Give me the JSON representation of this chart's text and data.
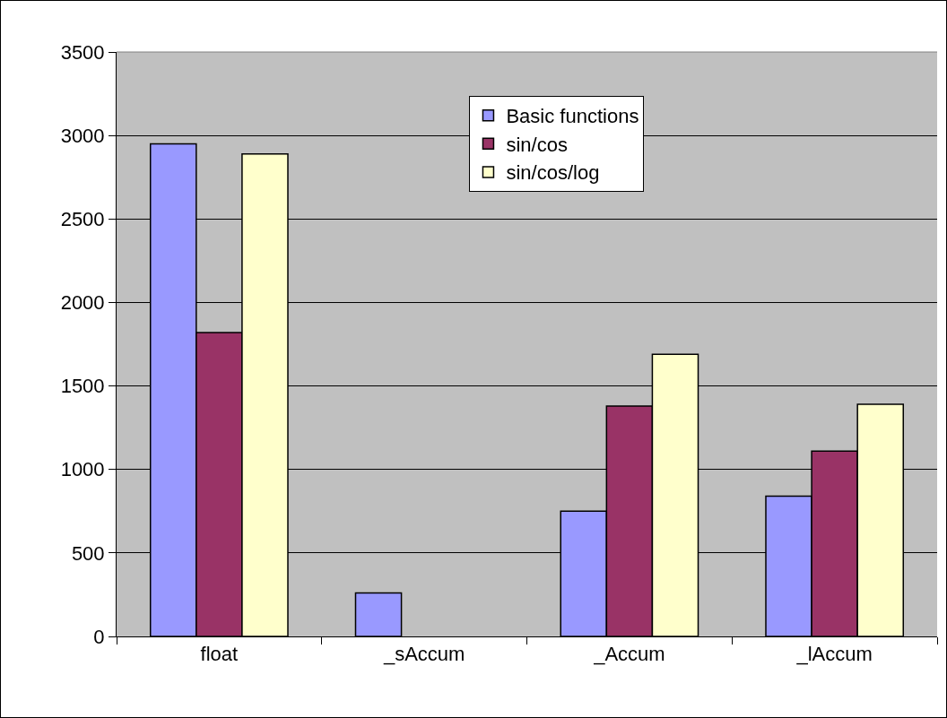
{
  "chart_data": {
    "type": "bar",
    "categories": [
      "float",
      "_sAccum",
      "_Accum",
      "_lAccum"
    ],
    "series": [
      {
        "name": "Basic functions",
        "color": "#9999ff",
        "values": [
          2950,
          260,
          750,
          840
        ]
      },
      {
        "name": "sin/cos",
        "color": "#993366",
        "values": [
          1820,
          null,
          1380,
          1110
        ]
      },
      {
        "name": "sin/cos/log",
        "color": "#ffffcc",
        "values": [
          2890,
          null,
          1690,
          1390
        ]
      }
    ],
    "ylim": [
      0,
      3500
    ],
    "yticks": [
      0,
      500,
      1000,
      1500,
      2000,
      2500,
      3000,
      3500
    ],
    "grid": "y",
    "legend": "top"
  }
}
